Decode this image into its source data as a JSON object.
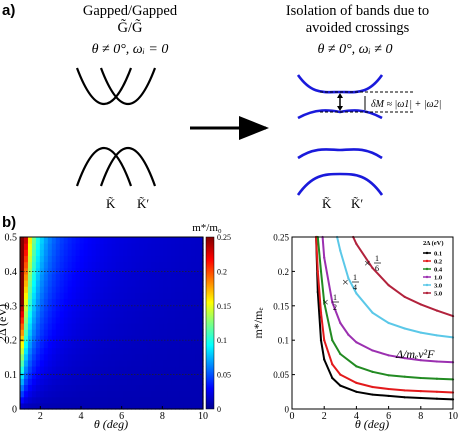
{
  "panel_a": {
    "label": "a)",
    "left": {
      "title_line1": "Gapped/Gapped",
      "title_line2": "G̃/G̃",
      "condition": "θ ≠ 0°, ωᵢ = 0",
      "k_labels": [
        "K̃",
        "K̃′"
      ]
    },
    "right": {
      "title_line1": "Isolation of bands due to",
      "title_line2": "avoided crossings",
      "condition": "θ ≠ 0°, ωᵢ ≠ 0",
      "gap_annotation": "δM ≈ |ω1| + |ω2|",
      "k_labels": [
        "K̃",
        "K̃′"
      ]
    },
    "colors": {
      "left_bands": "#000000",
      "right_bands": "#1a1adb"
    }
  },
  "panel_b": {
    "label": "b)",
    "colorbar_title": "m*/m₀",
    "colormap": "jet",
    "colors": {
      "series_0_1": "#000000",
      "series_0_2": "#e31a1c",
      "series_0_4": "#228b22",
      "series_1_0": "#9b30b0",
      "series_3_0": "#5bc8e8",
      "series_5_0": "#b2223c"
    }
  },
  "chart_data": [
    {
      "type": "heatmap",
      "xlabel": "θ (deg)",
      "ylabel": "2Δ (eV)",
      "xlim": [
        1,
        10
      ],
      "ylim": [
        0,
        0.5
      ],
      "x_ticks": [
        "2",
        "4",
        "6",
        "8",
        "10"
      ],
      "y_ticks": [
        "0",
        "0.1",
        "0.2",
        "0.3",
        "0.4",
        "0.5"
      ],
      "colorbar_ticks": [
        "0",
        "0.05",
        "0.1",
        "0.15",
        "0.2",
        "0.25"
      ],
      "colorbar_range": [
        0,
        0.25
      ],
      "colorbar_label": "m*/m₀",
      "dotted_lines_y": [
        0.1,
        0.2,
        0.3,
        0.4
      ]
    },
    {
      "type": "line",
      "xlabel": "θ (deg)",
      "ylabel": "m*/mₑ",
      "xlim": [
        0,
        10
      ],
      "ylim": [
        0,
        0.25
      ],
      "x_ticks": [
        "0",
        "2",
        "4",
        "6",
        "8",
        "10"
      ],
      "y_ticks": [
        "0",
        "0.05",
        "0.1",
        "0.15",
        "0.2",
        "0.25"
      ],
      "legend_title": "2Δ (eV)",
      "legend_placement": "top-right",
      "annotations": [
        "× 1/6",
        "× 1/4",
        "× 1/2",
        "Δ/mₑv²F"
      ],
      "annotation_fractions": {
        "n1": "1",
        "d6": "6",
        "d4": "4",
        "d2": "2",
        "times": "×"
      },
      "series": [
        {
          "name": "0.1",
          "x": [
            1.5,
            1.6,
            1.8,
            2,
            2.5,
            3,
            4,
            5,
            6,
            7,
            8,
            9,
            10
          ],
          "values": [
            0.25,
            0.17,
            0.1,
            0.072,
            0.045,
            0.034,
            0.025,
            0.021,
            0.019,
            0.017,
            0.016,
            0.015,
            0.014
          ]
        },
        {
          "name": "0.2",
          "x": [
            1.5,
            1.6,
            1.8,
            2,
            2.5,
            3,
            4,
            5,
            6,
            7,
            8,
            9,
            10
          ],
          "values": [
            0.25,
            0.2,
            0.14,
            0.1,
            0.065,
            0.05,
            0.038,
            0.032,
            0.029,
            0.027,
            0.026,
            0.025,
            0.024
          ]
        },
        {
          "name": "0.4",
          "x": [
            1.6,
            1.8,
            2,
            2.5,
            3,
            4,
            5,
            6,
            7,
            8,
            9,
            10
          ],
          "values": [
            0.25,
            0.2,
            0.155,
            0.1,
            0.08,
            0.062,
            0.054,
            0.049,
            0.047,
            0.045,
            0.044,
            0.043
          ]
        },
        {
          "name": "1.0",
          "x": [
            1.9,
            2,
            2.5,
            3,
            3.5,
            4,
            5,
            6,
            7,
            8,
            9,
            10
          ],
          "values": [
            0.25,
            0.22,
            0.155,
            0.125,
            0.108,
            0.097,
            0.085,
            0.078,
            0.074,
            0.071,
            0.069,
            0.068
          ]
        },
        {
          "name": "3.0",
          "x": [
            2.8,
            3,
            3.5,
            4,
            5,
            6,
            7,
            8,
            9,
            10
          ],
          "values": [
            0.25,
            0.23,
            0.19,
            0.168,
            0.14,
            0.125,
            0.117,
            0.111,
            0.107,
            0.104
          ]
        },
        {
          "name": "5.0",
          "x": [
            3.8,
            4,
            5,
            6,
            7,
            8,
            9,
            10
          ],
          "values": [
            0.25,
            0.24,
            0.205,
            0.18,
            0.163,
            0.152,
            0.143,
            0.135
          ]
        }
      ]
    }
  ]
}
